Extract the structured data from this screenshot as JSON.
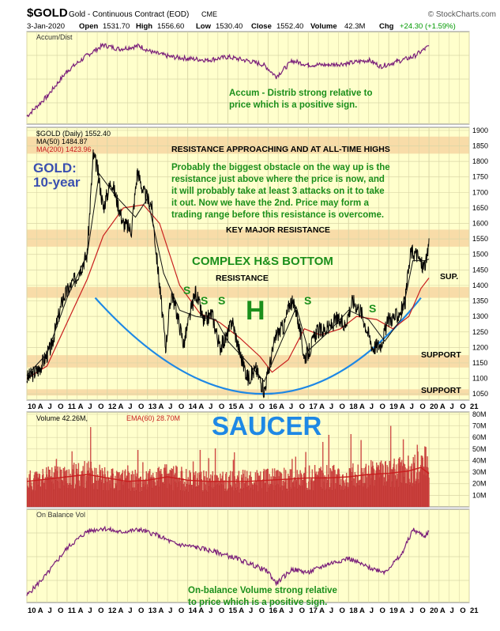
{
  "header": {
    "symbol": "$GOLD",
    "description": "Gold - Continuous Contract (EOD)",
    "exchange": "CME",
    "watermark": "© StockCharts.com",
    "date": "3-Jan-2020",
    "open_label": "Open",
    "open_value": "1531.70",
    "high_label": "High",
    "high_value": "1556.60",
    "low_label": "Low",
    "low_value": "1530.40",
    "close_label": "Close",
    "close_value": "1552.40",
    "volume_label": "Volume",
    "volume_value": "42.3M",
    "chg_label": "Chg",
    "chg_value": "+24.30 (+1.59%)",
    "up_color": "#009900"
  },
  "colors": {
    "panel_bg": "#ffffcc",
    "grid": "#d9d6a6",
    "band": "#f8dca8",
    "indicator_line": "#7a1f7a",
    "ma50": "#111111",
    "ma200": "#c81e1e",
    "saucer": "#1e88e5",
    "annotation_green": "#1b8f1b",
    "title_blue": "#3a4fb0",
    "volume_fill": "#d9534f",
    "volume_edge": "#a01010"
  },
  "x_axis_labels": [
    "10",
    "A",
    "J",
    "O",
    "11",
    "A",
    "J",
    "O",
    "12",
    "A",
    "J",
    "O",
    "13",
    "A",
    "J",
    "O",
    "14",
    "A",
    "J",
    "O",
    "15",
    "A",
    "J",
    "O",
    "16",
    "A",
    "J",
    "O",
    "17",
    "A",
    "J",
    "O",
    "18",
    "A",
    "J",
    "O",
    "19",
    "A",
    "J",
    "O",
    "20",
    "A",
    "J",
    "O",
    "21"
  ],
  "chart_data": [
    {
      "type": "line",
      "panel": "accum-dist",
      "legend": "Accum/Dist",
      "x_range": [
        "2010-01",
        "2021-01"
      ],
      "x": [
        2010.0,
        2010.5,
        2011.0,
        2011.5,
        2011.9,
        2012.3,
        2012.8,
        2013.1,
        2013.6,
        2014.0,
        2014.5,
        2015.0,
        2015.5,
        2015.9,
        2016.2,
        2016.6,
        2017.0,
        2017.5,
        2018.0,
        2018.5,
        2018.8,
        2019.2,
        2019.6,
        2019.9,
        2020.0
      ],
      "y": [
        5,
        30,
        62,
        82,
        95,
        90,
        94,
        86,
        80,
        78,
        76,
        80,
        75,
        70,
        55,
        75,
        70,
        70,
        72,
        76,
        68,
        74,
        80,
        90,
        94
      ],
      "annotation": "Accum - Distrib strong relative to price which is a positive sign."
    },
    {
      "type": "line",
      "panel": "price",
      "legend": [
        "$GOLD (Daily) 1552.40",
        "MA(50) 1484.87",
        "MA(200) 1423.96"
      ],
      "y_ticks": [
        1050,
        1100,
        1150,
        1200,
        1250,
        1300,
        1350,
        1400,
        1450,
        1500,
        1550,
        1600,
        1650,
        1700,
        1750,
        1800,
        1850,
        1900
      ],
      "ylim": [
        1030,
        1910
      ],
      "x_range": [
        "2010-01",
        "2021-01"
      ],
      "series": [
        {
          "name": "$GOLD",
          "x": [
            2010.0,
            2010.3,
            2010.6,
            2010.9,
            2011.2,
            2011.5,
            2011.65,
            2011.75,
            2011.9,
            2012.1,
            2012.4,
            2012.6,
            2012.75,
            2012.9,
            2013.1,
            2013.3,
            2013.45,
            2013.6,
            2013.75,
            2013.9,
            2014.1,
            2014.2,
            2014.4,
            2014.6,
            2014.8,
            2015.0,
            2015.1,
            2015.3,
            2015.5,
            2015.7,
            2015.9,
            2016.0,
            2016.2,
            2016.4,
            2016.55,
            2016.7,
            2016.9,
            2017.0,
            2017.2,
            2017.5,
            2017.7,
            2017.9,
            2018.1,
            2018.3,
            2018.6,
            2018.8,
            2019.0,
            2019.2,
            2019.4,
            2019.55,
            2019.7,
            2019.85,
            2019.95,
            2020.0
          ],
          "y": [
            1100,
            1130,
            1200,
            1360,
            1420,
            1500,
            1820,
            1780,
            1650,
            1740,
            1600,
            1580,
            1770,
            1700,
            1660,
            1400,
            1200,
            1380,
            1300,
            1210,
            1330,
            1380,
            1280,
            1310,
            1200,
            1240,
            1290,
            1180,
            1100,
            1130,
            1060,
            1120,
            1240,
            1270,
            1350,
            1320,
            1170,
            1180,
            1250,
            1260,
            1290,
            1270,
            1350,
            1320,
            1200,
            1210,
            1290,
            1300,
            1340,
            1510,
            1500,
            1460,
            1480,
            1552
          ]
        },
        {
          "name": "MA(50)",
          "x": [
            2010.0,
            2010.5,
            2011.0,
            2011.5,
            2011.8,
            2012.2,
            2012.7,
            2013.0,
            2013.4,
            2013.8,
            2014.2,
            2014.7,
            2015.0,
            2015.5,
            2015.9,
            2016.3,
            2016.7,
            2017.0,
            2017.5,
            2018.0,
            2018.5,
            2018.9,
            2019.3,
            2019.6,
            2019.9,
            2020.0
          ],
          "y": [
            1110,
            1180,
            1360,
            1500,
            1760,
            1690,
            1620,
            1680,
            1440,
            1320,
            1300,
            1290,
            1220,
            1150,
            1090,
            1210,
            1330,
            1190,
            1250,
            1320,
            1290,
            1220,
            1290,
            1480,
            1480,
            1484.87
          ]
        },
        {
          "name": "MA(200)",
          "x": [
            2010.0,
            2010.5,
            2011.0,
            2011.5,
            2011.9,
            2012.4,
            2012.9,
            2013.3,
            2013.8,
            2014.3,
            2014.8,
            2015.3,
            2015.8,
            2016.1,
            2016.5,
            2016.9,
            2017.3,
            2017.8,
            2018.2,
            2018.7,
            2019.1,
            2019.5,
            2019.8,
            2020.0
          ],
          "y": [
            1100,
            1140,
            1280,
            1420,
            1560,
            1650,
            1660,
            1600,
            1400,
            1310,
            1280,
            1230,
            1170,
            1120,
            1160,
            1260,
            1240,
            1260,
            1300,
            1290,
            1260,
            1300,
            1390,
            1423.96
          ]
        }
      ],
      "bands": [
        {
          "label": "RESISTANCE APPROACHING AND AT ALL-TIME HIGHS",
          "y": [
            1825,
            1880
          ]
        },
        {
          "label": "KEY MAJOR RESISTANCE",
          "y": [
            1525,
            1580
          ]
        },
        {
          "label": "RESISTANCE",
          "y": [
            1360,
            1395
          ]
        },
        {
          "label": "SUP.",
          "y": [
            1360,
            1395
          ]
        },
        {
          "label": "SUPPORT",
          "y": [
            1135,
            1175
          ]
        },
        {
          "label": "SUPPORT",
          "y": [
            1045,
            1065
          ]
        }
      ],
      "saucer": {
        "x": [
          2011.7,
          2016.0,
          2019.8
        ],
        "y": [
          1360,
          1050,
          1360
        ]
      },
      "annotations": {
        "title_line1": "GOLD:",
        "title_line2": "10-year",
        "commentary": [
          "Probably the biggest obstacle on the way up is the",
          "resistance just above where the price is now, and",
          "it will probably take at least 3 attacks on it to take",
          "it out. Now we have the 2nd. Price may form a",
          "trading range before this resistance is overcome."
        ],
        "pattern_label": "COMPLEX H&S BOTTOM",
        "head_label": "H",
        "shoulder_labels": [
          "S",
          "S",
          "S",
          "S",
          "S"
        ],
        "saucer_label": "SAUCER"
      }
    },
    {
      "type": "bar",
      "panel": "volume",
      "legend": [
        "Volume 42.26M,",
        "EMA(60) 28.70M"
      ],
      "y_ticks": [
        "10M",
        "20M",
        "30M",
        "40M",
        "50M",
        "60M",
        "70M",
        "80M"
      ],
      "ylim": [
        0,
        82
      ],
      "x_range": [
        "2010-01",
        "2021-01"
      ],
      "x": [
        2010.0,
        2010.5,
        2011.0,
        2011.5,
        2012.0,
        2012.5,
        2013.0,
        2013.5,
        2014.0,
        2014.5,
        2015.0,
        2015.5,
        2016.0,
        2016.5,
        2017.0,
        2017.5,
        2018.0,
        2018.5,
        2019.0,
        2019.5,
        2019.8,
        2020.0
      ],
      "ema": [
        22,
        24,
        26,
        28,
        25,
        22,
        23,
        26,
        23,
        22,
        22,
        22,
        23,
        24,
        25,
        25,
        26,
        28,
        29,
        31,
        34,
        28.7
      ]
    },
    {
      "type": "line",
      "panel": "on-balance-volume",
      "legend": "On Balance Vol",
      "x_range": [
        "2010-01",
        "2021-01"
      ],
      "x": [
        2010.0,
        2010.5,
        2011.0,
        2011.5,
        2011.9,
        2012.3,
        2012.8,
        2013.2,
        2013.7,
        2014.2,
        2014.7,
        2015.2,
        2015.7,
        2016.0,
        2016.2,
        2016.6,
        2017.0,
        2017.5,
        2018.0,
        2018.5,
        2018.9,
        2019.3,
        2019.6,
        2019.9,
        2020.0
      ],
      "y": [
        5,
        32,
        65,
        86,
        90,
        85,
        88,
        82,
        70,
        66,
        60,
        52,
        42,
        35,
        20,
        38,
        34,
        45,
        52,
        40,
        35,
        55,
        88,
        80,
        86
      ],
      "annotation": "On-balance Volume strong relative to price which is a positive sign."
    }
  ]
}
